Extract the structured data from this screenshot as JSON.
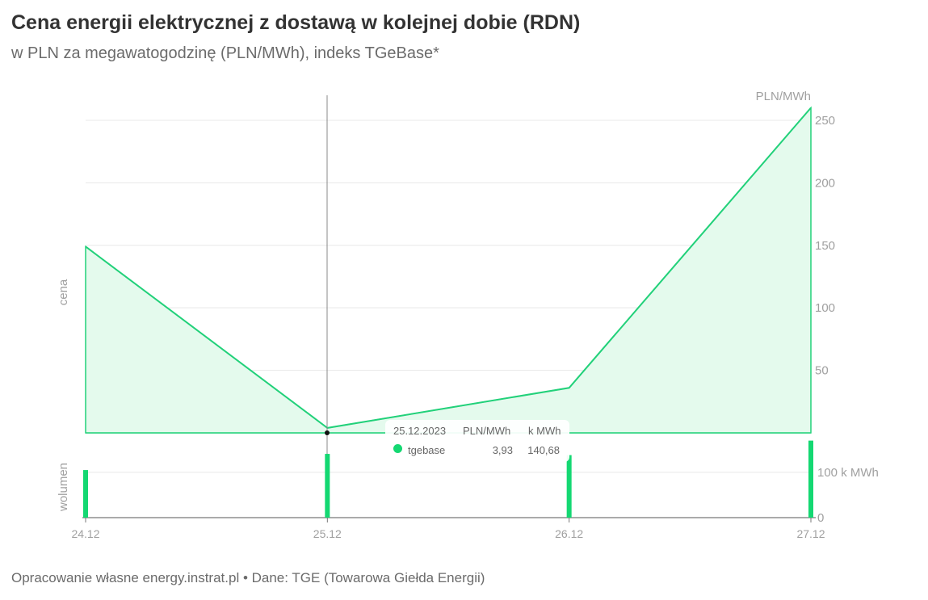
{
  "header": {
    "title": "Cena energii elektrycznej z dostawą w kolejnej dobie (RDN)",
    "subtitle": "w PLN za megawatogodzinę (PLN/MWh), indeks TGeBase*"
  },
  "footer": {
    "text": "Opracowanie własne energy.instrat.pl • Dane: TGE (Towarowa Giełda Energii)"
  },
  "colors": {
    "line": "#22d17a",
    "fill": "#e4faed",
    "bar": "#14d872",
    "grid": "#e8e8e8",
    "axis": "#aaaaaa",
    "label": "#a0a0a0"
  },
  "chart_data": [
    {
      "type": "area",
      "name": "cena",
      "ylabel": "cena",
      "unit_label": "PLN/MWh",
      "x": [
        "24.12",
        "25.12",
        "26.12",
        "27.12"
      ],
      "series": [
        {
          "name": "tgebase",
          "values": [
            149,
            3.93,
            36,
            260
          ]
        }
      ],
      "ylim": [
        0,
        270
      ],
      "yticks": [
        50,
        100,
        150,
        200,
        250
      ],
      "grid": true
    },
    {
      "type": "bar",
      "name": "wolumen",
      "ylabel": "wolumen",
      "categories": [
        "24.12",
        "25.12",
        "26.12",
        "27.12"
      ],
      "values": [
        105,
        140.68,
        138,
        170
      ],
      "ytick_labels": [
        "0",
        "100 k MWh"
      ],
      "yticks": [
        0,
        100
      ],
      "ylim": [
        0,
        180
      ]
    }
  ],
  "tooltip": {
    "date": "25.12.2023",
    "col1": "PLN/MWh",
    "col2": "k MWh",
    "series": "tgebase",
    "value1": "3,93",
    "value2": "140,68"
  }
}
